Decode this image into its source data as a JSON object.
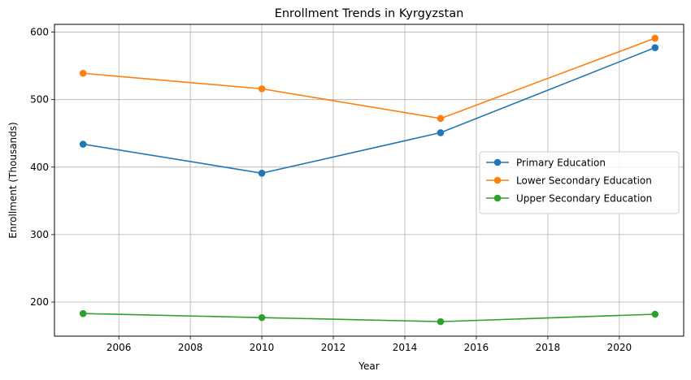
{
  "chart_data": {
    "type": "line",
    "title": "Enrollment Trends in Kyrgyzstan",
    "xlabel": "Year",
    "ylabel": "Enrollment (Thousands)",
    "x": [
      2005,
      2010,
      2015,
      2021
    ],
    "xlim": [
      2004.2,
      2021.8
    ],
    "ylim": [
      149.5,
      611.5
    ],
    "xticks": [
      2006,
      2008,
      2010,
      2012,
      2014,
      2016,
      2018,
      2020
    ],
    "yticks": [
      200,
      300,
      400,
      500,
      600
    ],
    "grid": true,
    "legend_position": "center-right",
    "series": [
      {
        "name": "Primary Education",
        "color": "#1f77b4",
        "values": [
          434,
          391,
          451,
          577
        ]
      },
      {
        "name": "Lower Secondary Education",
        "color": "#ff7f0e",
        "values": [
          539,
          516,
          472,
          591
        ]
      },
      {
        "name": "Upper Secondary Education",
        "color": "#2ca02c",
        "values": [
          183,
          177,
          171,
          182
        ]
      }
    ]
  }
}
